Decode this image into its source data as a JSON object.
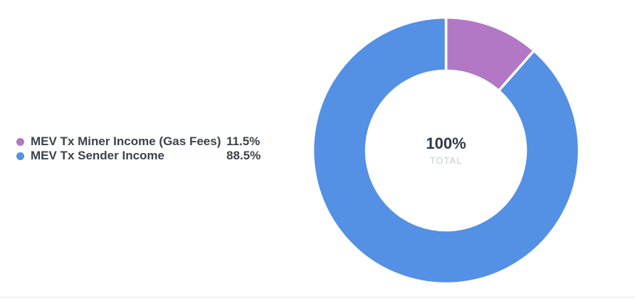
{
  "chart_data": {
    "type": "pie",
    "subtype": "donut",
    "title": "",
    "legend_position": "left",
    "start_angle_deg": 0,
    "direction": "clockwise",
    "total": 100,
    "slices": [
      {
        "label": "MEV Tx Miner Income (Gas Fees)",
        "value": 11.5,
        "value_label": "11.5%",
        "color": "#b278c5"
      },
      {
        "label": "MEV Tx Sender Income",
        "value": 88.5,
        "value_label": "88.5%",
        "color": "#5490e4"
      }
    ],
    "center": {
      "value": "100%",
      "sublabel": "TOTAL"
    }
  },
  "colors": {
    "background": "#ffffff",
    "slice_separator": "#ffffff",
    "legend_text": "#3b424a",
    "center_value_text": "#2f3842",
    "center_sublabel_text": "#c7ced6",
    "divider": "#e8e9ea"
  }
}
